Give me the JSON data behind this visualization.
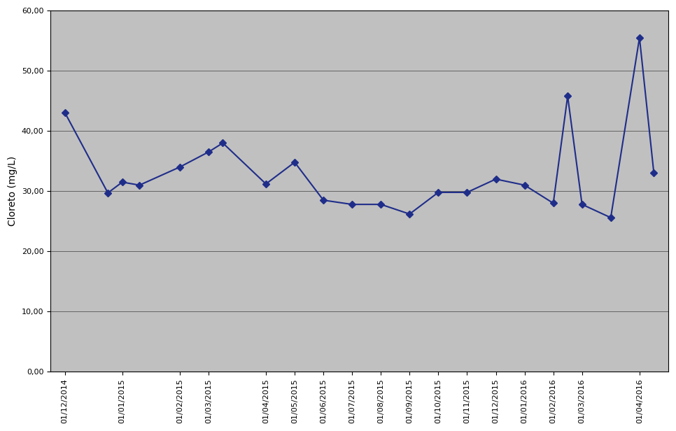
{
  "x_indices": [
    0,
    1.5,
    2.0,
    2.6,
    4,
    5,
    5.5,
    7,
    8,
    9,
    10,
    11,
    12,
    13,
    14,
    15,
    16,
    17,
    17.5,
    18,
    19,
    20,
    20.5
  ],
  "values": [
    43.08,
    29.71,
    31.5,
    31.0,
    34.0,
    36.5,
    38.0,
    31.2,
    34.8,
    28.5,
    27.8,
    27.8,
    26.2,
    29.8,
    29.8,
    32.0,
    31.0,
    28.0,
    45.8,
    27.8,
    25.6,
    55.5,
    33.0
  ],
  "xtick_positions": [
    0,
    2,
    4,
    5,
    7,
    8,
    9,
    10,
    11,
    12,
    13,
    14,
    15,
    16,
    17,
    18,
    20
  ],
  "xtick_labels": [
    "01/12/2014",
    "01/01/2015",
    "01/02/2015",
    "01/03/2015",
    "01/04/2015",
    "01/05/2015",
    "01/06/2015",
    "01/07/2015",
    "01/08/2015",
    "01/09/2015",
    "01/10/2015",
    "01/11/2015",
    "01/12/2015",
    "01/01/2016",
    "01/02/2016",
    "01/03/2016",
    "01/04/2016"
  ],
  "ylabel": "Cloreto (mg/L)",
  "ylim": [
    0,
    60
  ],
  "ytick_values": [
    0,
    10,
    20,
    30,
    40,
    50,
    60
  ],
  "ytick_labels": [
    "0,00",
    "10,00",
    "20,00",
    "30,00",
    "40,00",
    "50,00",
    "60,00"
  ],
  "line_color": "#1F2D8A",
  "marker": "D",
  "marker_size": 5,
  "bg_color": "#C0C0C0",
  "fig_bg_color": "#FFFFFF",
  "grid_color": "#404040",
  "tick_fontsize": 8,
  "label_fontsize": 10,
  "xlim": [
    -0.5,
    21.0
  ]
}
